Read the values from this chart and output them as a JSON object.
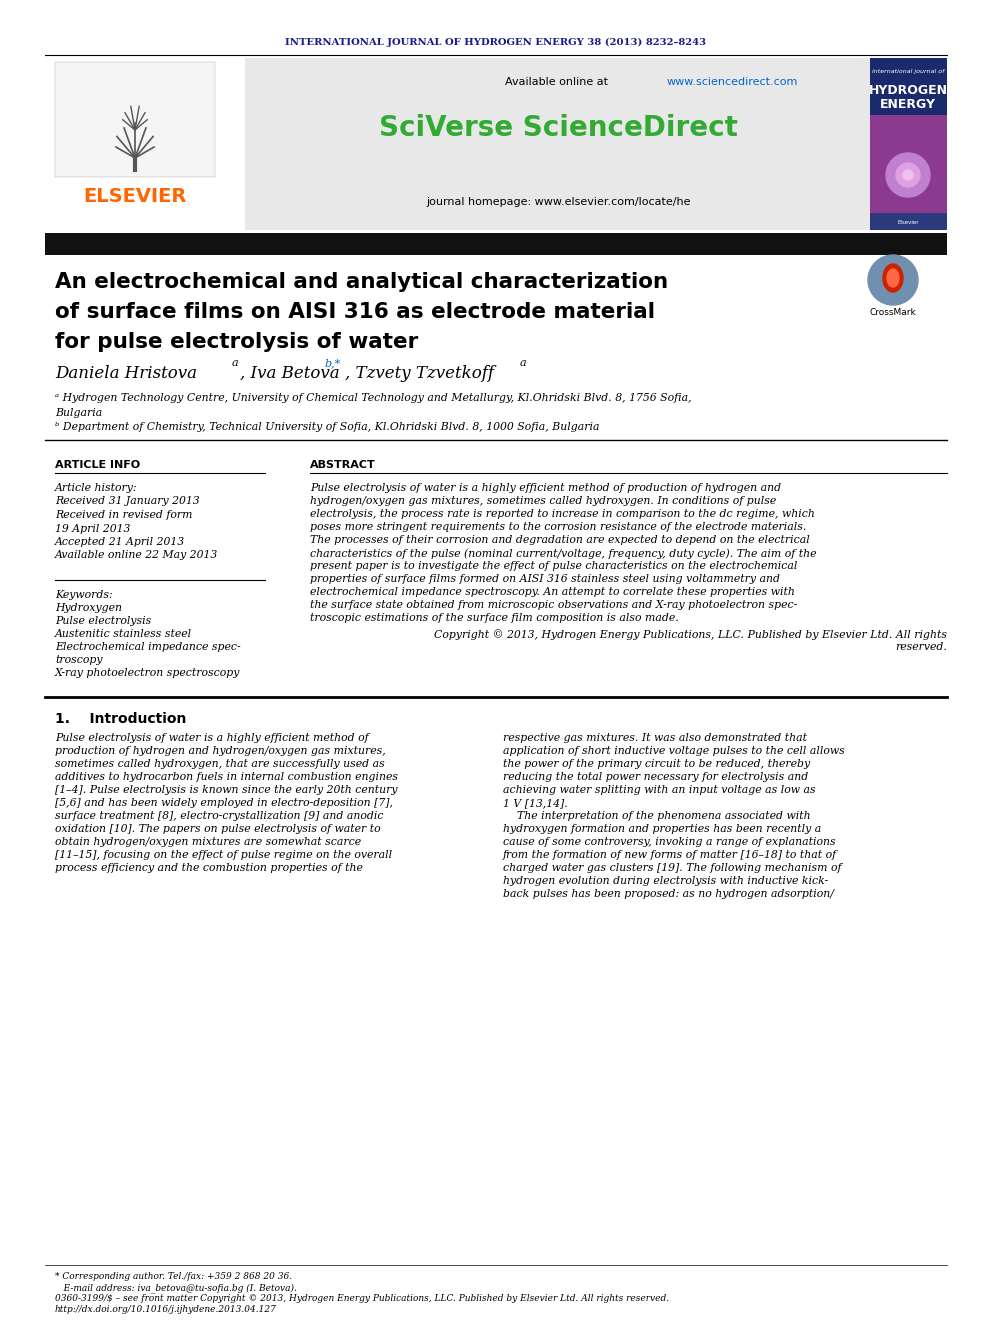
{
  "journal_header": "INTERNATIONAL JOURNAL OF HYDROGEN ENERGY 38 (2013) 8232–8243",
  "journal_header_color": "#1a1a8c",
  "available_online_text": "Available online at ",
  "available_online_url": "www.sciencedirect.com",
  "sciverse_text": "SciVerse ScienceDirect",
  "sciverse_color": "#33aa33",
  "journal_homepage_text": "journal homepage: www.elsevier.com/locate/he",
  "elsevier_text": "ELSEVIER",
  "elsevier_color": "#ff6600",
  "article_title_lines": [
    "An electrochemical and analytical characterization",
    "of surface films on AISI 316 as electrode material",
    "for pulse electrolysis of water"
  ],
  "affiliation_a": "ᵃ Hydrogen Technology Centre, University of Chemical Technology and Metallurgy, Kl.Ohridski Blvd. 8, 1756 Sofia,",
  "affiliation_a2": "Bulgaria",
  "affiliation_b": "ᵇ Department of Chemistry, Technical University of Sofia, Kl.Ohridski Blvd. 8, 1000 Sofia, Bulgaria",
  "article_info_header": "ARTICLE INFO",
  "abstract_header": "ABSTRACT",
  "article_history_label": "Article history:",
  "received1": "Received 31 January 2013",
  "received_revised1": "Received in revised form",
  "received_revised2": "19 April 2013",
  "accepted": "Accepted 21 April 2013",
  "available": "Available online 22 May 2013",
  "keywords_label": "Keywords:",
  "keywords": [
    "Hydroxygen",
    "Pulse electrolysis",
    "Austenitic stainless steel",
    "Electrochemical impedance spec-",
    "troscopy",
    "X-ray photoelectron spectroscopy"
  ],
  "abstract_lines": [
    "Pulse electrolysis of water is a highly efficient method of production of hydrogen and",
    "hydrogen/oxygen gas mixtures, sometimes called hydroxygen. In conditions of pulse",
    "electrolysis, the process rate is reported to increase in comparison to the dc regime, which",
    "poses more stringent requirements to the corrosion resistance of the electrode materials.",
    "The processes of their corrosion and degradation are expected to depend on the electrical",
    "characteristics of the pulse (nominal current/voltage, frequency, duty cycle). The aim of the",
    "present paper is to investigate the effect of pulse characteristics on the electrochemical",
    "properties of surface films formed on AISI 316 stainless steel using voltammetry and",
    "electrochemical impedance spectroscopy. An attempt to correlate these properties with",
    "the surface state obtained from microscopic observations and X-ray photoelectron spec-",
    "troscopic estimations of the surface film composition is also made."
  ],
  "copyright_line1": "Copyright © 2013, Hydrogen Energy Publications, LLC. Published by Elsevier Ltd. All rights",
  "copyright_line2": "reserved.",
  "intro_header": "1.    Introduction",
  "intro_col1_lines": [
    "Pulse electrolysis of water is a highly efficient method of",
    "production of hydrogen and hydrogen/oxygen gas mixtures,",
    "sometimes called hydroxygen, that are successfully used as",
    "additives to hydrocarbon fuels in internal combustion engines",
    "[1–4]. Pulse electrolysis is known since the early 20th century",
    "[5,6] and has been widely employed in electro-deposition [7],",
    "surface treatment [8], electro-crystallization [9] and anodic",
    "oxidation [10]. The papers on pulse electrolysis of water to",
    "obtain hydrogen/oxygen mixtures are somewhat scarce",
    "[11–15], focusing on the effect of pulse regime on the overall",
    "process efficiency and the combustion properties of the"
  ],
  "intro_col2_lines": [
    "respective gas mixtures. It was also demonstrated that",
    "application of short inductive voltage pulses to the cell allows",
    "the power of the primary circuit to be reduced, thereby",
    "reducing the total power necessary for electrolysis and",
    "achieving water splitting with an input voltage as low as",
    "1 V [13,14].",
    "    The interpretation of the phenomena associated with",
    "hydroxygen formation and properties has been recently a",
    "cause of some controversy, invoking a range of explanations",
    "from the formation of new forms of matter [16–18] to that of",
    "charged water gas clusters [19]. The following mechanism of",
    "hydrogen evolution during electrolysis with inductive kick-",
    "back pulses has been proposed: as no hydrogen adsorption/"
  ],
  "footer_lines": [
    "* Corresponding author. Tel./fax: +359 2 868 20 36.",
    "   E-mail address: iva_betova@tu-sofia.bg (I. Betova).",
    "0360-3199/$ – see front matter Copyright © 2013, Hydrogen Energy Publications, LLC. Published by Elsevier Ltd. All rights reserved.",
    "http://dx.doi.org/10.1016/j.ijhydene.2013.04.127"
  ],
  "bg_color": "#ffffff",
  "link_color": "#0066cc",
  "header_bg": "#e8e8e8",
  "dark_bar_color": "#111111",
  "journal_cover_bg": "#1a2a6c"
}
